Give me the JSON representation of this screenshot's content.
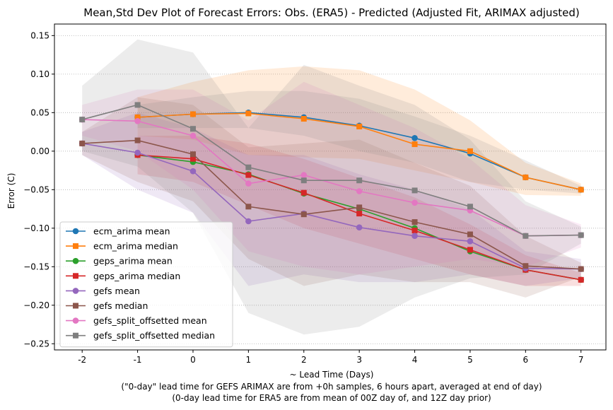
{
  "chart_data": {
    "type": "line",
    "title": "Mean,Std Dev Plot of Forecast Errors: Obs. (ERA5) - Predicted (Adjusted Fit, ARIMAX adjusted)",
    "xlabel": "~ Lead Time (Days)",
    "xlabel_notes": [
      "(\"0-day\" lead time for GEFS ARIMAX are from +0h samples, 6 hours apart, averaged at end of day)",
      "(0-day lead time for ERA5 are from mean of 00Z day of, and 12Z day prior)"
    ],
    "ylabel": "Error (C)",
    "xlim": [
      -2.5,
      7.45
    ],
    "ylim": [
      -0.258,
      0.165
    ],
    "x_ticks": [
      -2,
      -1,
      0,
      1,
      2,
      3,
      4,
      5,
      6,
      7
    ],
    "y_ticks": [
      -0.25,
      -0.2,
      -0.15,
      -0.1,
      -0.05,
      0.0,
      0.05,
      0.1,
      0.15
    ],
    "y_tick_labels": [
      "−0.25",
      "−0.20",
      "−0.15",
      "−0.10",
      "−0.05",
      "0.00",
      "0.05",
      "0.10",
      "0.15"
    ],
    "grid": "y-dotted",
    "legend_position": "lower-left",
    "series": [
      {
        "name": "ecm_arima mean",
        "color": "#1f77b4",
        "marker": "circle",
        "x": [
          -1,
          0,
          1,
          2,
          3,
          4,
          5,
          6,
          7
        ],
        "y": [
          0.044,
          0.048,
          0.05,
          0.044,
          0.033,
          0.017,
          -0.003,
          -0.034,
          -0.05
        ]
      },
      {
        "name": "ecm_arima median",
        "color": "#ff7f0e",
        "marker": "square",
        "x": [
          -1,
          0,
          1,
          2,
          3,
          4,
          5,
          6,
          7
        ],
        "y": [
          0.044,
          0.048,
          0.049,
          0.042,
          0.032,
          0.009,
          0.0,
          -0.034,
          -0.05
        ],
        "band": {
          "lower": [
            0.02,
            0.015,
            -0.005,
            -0.008,
            -0.01,
            -0.025,
            -0.04,
            -0.057,
            -0.058
          ],
          "upper": [
            0.07,
            0.09,
            0.105,
            0.11,
            0.105,
            0.08,
            0.04,
            -0.015,
            -0.042
          ]
        }
      },
      {
        "name": "geps_arima mean",
        "color": "#2ca02c",
        "marker": "circle",
        "x": [
          -1,
          0,
          1,
          2,
          3,
          4,
          5,
          6,
          7
        ],
        "y": [
          -0.005,
          -0.014,
          -0.03,
          -0.055,
          -0.075,
          -0.1,
          -0.13,
          -0.154,
          -0.167
        ]
      },
      {
        "name": "geps_arima median",
        "color": "#d62728",
        "marker": "square",
        "x": [
          -1,
          0,
          1,
          2,
          3,
          4,
          5,
          6,
          7
        ],
        "y": [
          -0.005,
          -0.01,
          -0.031,
          -0.054,
          -0.081,
          -0.103,
          -0.128,
          -0.154,
          -0.167
        ],
        "band": {
          "lower": [
            -0.03,
            -0.04,
            -0.07,
            -0.1,
            -0.12,
            -0.14,
            -0.16,
            -0.175,
            -0.175
          ],
          "upper": [
            0.02,
            0.02,
            0.01,
            -0.01,
            -0.035,
            -0.06,
            -0.095,
            -0.135,
            -0.158
          ]
        }
      },
      {
        "name": "gefs mean",
        "color": "#9467bd",
        "marker": "circle",
        "x": [
          -2,
          -1,
          0,
          1,
          2,
          3,
          4,
          5,
          6,
          7
        ],
        "y": [
          0.01,
          -0.002,
          -0.026,
          -0.091,
          -0.081,
          -0.099,
          -0.11,
          -0.117,
          -0.152,
          -0.153
        ],
        "band": {
          "lower": [
            -0.005,
            -0.05,
            -0.08,
            -0.175,
            -0.16,
            -0.17,
            -0.17,
            -0.16,
            -0.175,
            -0.165
          ],
          "upper": [
            0.025,
            0.05,
            0.03,
            -0.005,
            -0.005,
            -0.03,
            -0.05,
            -0.075,
            -0.13,
            -0.14
          ]
        }
      },
      {
        "name": "gefs median",
        "color": "#8c564b",
        "marker": "square",
        "x": [
          -2,
          -1,
          0,
          1,
          2,
          3,
          4,
          5,
          6,
          7
        ],
        "y": [
          0.01,
          0.014,
          -0.004,
          -0.072,
          -0.082,
          -0.073,
          -0.092,
          -0.108,
          -0.149,
          -0.153
        ],
        "band": {
          "lower": [
            -0.005,
            -0.04,
            -0.065,
            -0.14,
            -0.175,
            -0.16,
            -0.17,
            -0.17,
            -0.19,
            -0.163
          ],
          "upper": [
            0.025,
            0.07,
            0.06,
            0.005,
            0.01,
            0.015,
            -0.015,
            -0.045,
            -0.11,
            -0.145
          ]
        }
      },
      {
        "name": "gefs_split_offsetted mean",
        "color": "#e377c2",
        "marker": "circle",
        "x": [
          -2,
          -1,
          0,
          1,
          2,
          3,
          4,
          5,
          6,
          7
        ],
        "y": [
          0.041,
          0.039,
          0.02,
          -0.042,
          -0.031,
          -0.052,
          -0.067,
          -0.077,
          -0.11,
          -0.109
        ],
        "band": {
          "lower": [
            0.02,
            0.0,
            -0.05,
            -0.13,
            -0.15,
            -0.16,
            -0.15,
            -0.14,
            -0.15,
            -0.125
          ],
          "upper": [
            0.06,
            0.08,
            0.08,
            0.04,
            0.09,
            0.06,
            0.03,
            -0.01,
            -0.07,
            -0.095
          ]
        }
      },
      {
        "name": "gefs_split_offsetted median",
        "color": "#7f7f7f",
        "marker": "square",
        "x": [
          -2,
          -1,
          0,
          1,
          2,
          3,
          4,
          5,
          6,
          7
        ],
        "y": [
          0.041,
          0.06,
          0.029,
          -0.021,
          -0.038,
          -0.038,
          -0.051,
          -0.072,
          -0.11,
          -0.109
        ],
        "band": {
          "lower": [
            0.0,
            -0.02,
            -0.08,
            -0.21,
            -0.238,
            -0.228,
            -0.19,
            -0.165,
            -0.16,
            -0.12
          ],
          "upper": [
            0.085,
            0.145,
            0.128,
            0.03,
            0.112,
            0.085,
            0.06,
            0.015,
            -0.065,
            -0.098
          ]
        }
      }
    ],
    "extra_bands": [
      {
        "color": "#7f7f7f",
        "x": [
          -1,
          0,
          1,
          2,
          3,
          4,
          5,
          6,
          7
        ],
        "lower": [
          0.03,
          0.03,
          0.03,
          0.02,
          0.0,
          -0.015,
          -0.04,
          -0.05,
          -0.055
        ],
        "upper": [
          0.06,
          0.07,
          0.078,
          0.078,
          0.068,
          0.045,
          0.02,
          -0.012,
          -0.045
        ]
      }
    ]
  }
}
